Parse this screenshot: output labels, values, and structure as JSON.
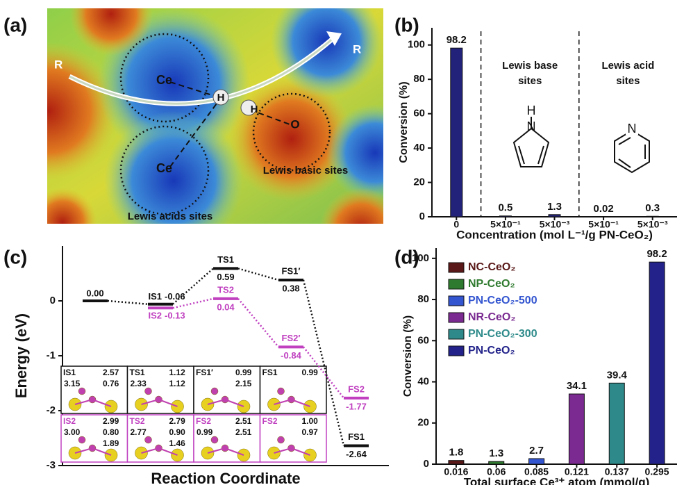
{
  "panel_a": {
    "label": "(a)",
    "texts": {
      "ce1": "Ce",
      "ce2": "Ce",
      "h1": "H",
      "h2": "H",
      "o": "O",
      "basic": "Lewis basic sites",
      "acid": "Lewis acids sites",
      "r1": "R",
      "r2": "R"
    }
  },
  "chart_data": [
    {
      "panel": "(b)",
      "type": "bar",
      "categories": [
        "0",
        "5×10⁻¹",
        "5×10⁻³",
        "5×10⁻¹",
        "5×10⁻³"
      ],
      "values": [
        98.2,
        0.5,
        1.3,
        0.02,
        0.3
      ],
      "color": "#22227a",
      "ylim": [
        0,
        110
      ],
      "yticks": [
        0,
        20,
        40,
        60,
        80,
        100
      ],
      "ylabel": "Conversion (%)",
      "xlabel": "Concentration (mol L⁻¹/g PN-CeO₂)",
      "annotations": [
        [
          "Lewis base",
          "sites"
        ],
        [
          "Lewis acid",
          "sites"
        ]
      ]
    },
    {
      "panel": "(c)",
      "type": "energy",
      "ylim": [
        -3,
        1
      ],
      "yticks": [
        -3,
        -2,
        -1,
        0
      ],
      "ylabel": "Energy (eV)",
      "xlabel": "Reaction Coordinate",
      "series": [
        {
          "color": "#111111",
          "states": [
            null,
            "IS1",
            "TS1",
            "FS1′",
            "FS1"
          ],
          "values": [
            0,
            -0.06,
            0.59,
            0.38,
            -2.64
          ],
          "value_labels": [
            "0.00",
            "-0.06",
            "0.59",
            "0.38",
            "-2.64"
          ]
        },
        {
          "color": "#c040c0",
          "states": [
            null,
            "IS2",
            "TS2",
            "FS2′",
            "FS2"
          ],
          "values": [
            null,
            -0.13,
            0.04,
            -0.84,
            -1.77
          ]
        }
      ],
      "insets": [
        {
          "title": "IS1",
          "numbers": [
            "2.57",
            "0.76",
            "3.15"
          ]
        },
        {
          "title": "TS1",
          "numbers": [
            "1.12",
            "1.12",
            "2.33"
          ]
        },
        {
          "title": "FS1′",
          "numbers": [
            "0.99",
            "2.15"
          ]
        },
        {
          "title": "FS1",
          "numbers": [
            "0.99"
          ]
        },
        {
          "title": "IS2",
          "numbers": [
            "2.99",
            "0.80",
            "3.00",
            "1.89"
          ]
        },
        {
          "title": "TS2",
          "numbers": [
            "2.79",
            "0.90",
            "2.77",
            "1.46"
          ]
        },
        {
          "title": "FS2",
          "numbers": [
            "2.51",
            "2.51",
            "0.99"
          ]
        },
        {
          "title": "FS2",
          "numbers": [
            "1.00",
            "0.97"
          ]
        }
      ]
    },
    {
      "panel": "(d)",
      "type": "bar",
      "categories": [
        "0.016",
        "0.06",
        "0.085",
        "0.121",
        "0.137",
        "0.295"
      ],
      "values": [
        1.8,
        1.3,
        2.7,
        34.1,
        39.4,
        98.2
      ],
      "colors": [
        "#5a1818",
        "#2e7a2e",
        "#3355d0",
        "#7a2a90",
        "#2e8a8a",
        "#22228a"
      ],
      "legend": [
        "NC-CeO₂",
        "NP-CeO₂",
        "PN-CeO₂-500",
        "NR-CeO₂",
        "PN-CeO₂-300",
        "PN-CeO₂"
      ],
      "ylim": [
        0,
        105
      ],
      "yticks": [
        0,
        20,
        40,
        60,
        80,
        100
      ],
      "ylabel": "Conversion (%)",
      "xlabel": "Total surface Ce³⁺ atom (mmol/g)"
    }
  ]
}
